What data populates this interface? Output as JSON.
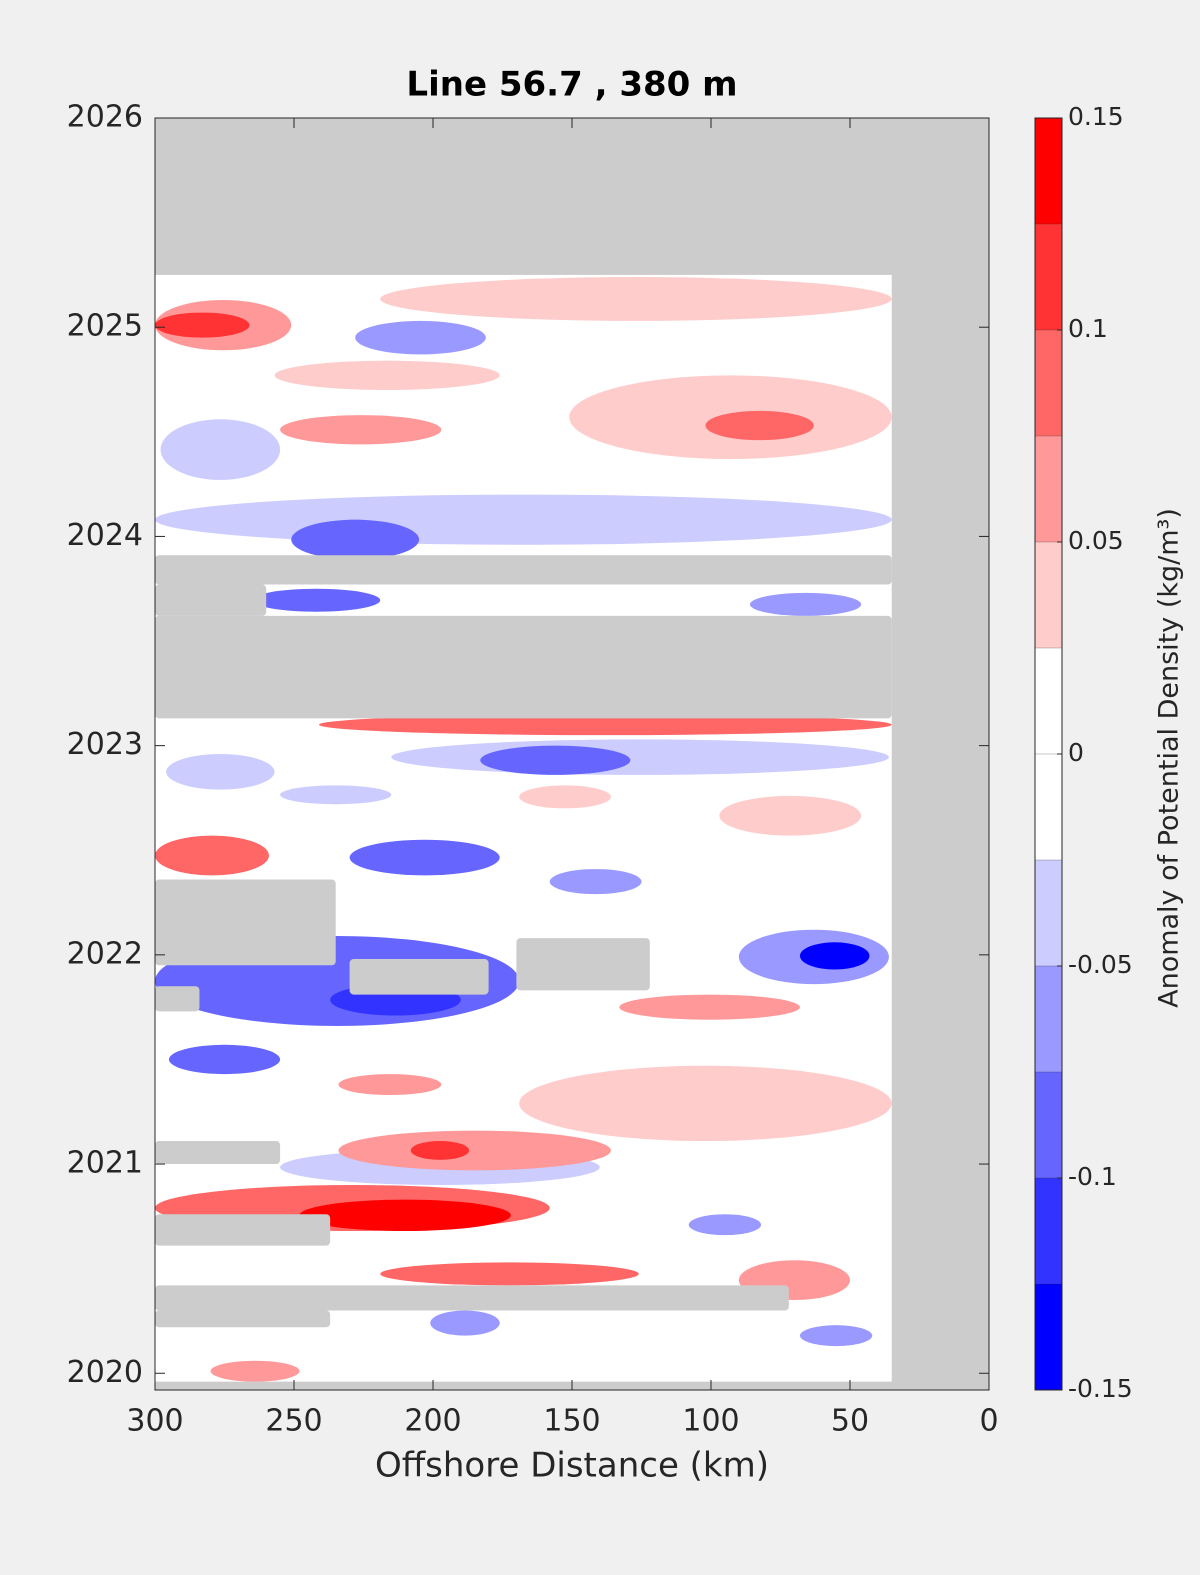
{
  "chart_data": {
    "type": "contour",
    "title": "Line 56.7 , 380 m",
    "xlabel": "Offshore Distance (km)",
    "colorbar_label": "Anomaly of Potential Density (kg/m³)",
    "xlim": [
      300,
      0
    ],
    "ylim": [
      2019.92,
      2026
    ],
    "xticks": [
      300,
      250,
      200,
      150,
      100,
      50,
      0
    ],
    "yticks": [
      2020,
      2021,
      2022,
      2023,
      2024,
      2025,
      2026
    ],
    "levels": [
      -0.15,
      -0.125,
      -0.1,
      -0.075,
      -0.05,
      -0.025,
      0,
      0.025,
      0.05,
      0.075,
      0.1,
      0.125,
      0.15
    ],
    "colors": [
      "#0000ff",
      "#3333ff",
      "#6666ff",
      "#9999ff",
      "#ccccff",
      "#ffffff",
      "#ffffff",
      "#ffcccc",
      "#ff9999",
      "#ff6666",
      "#ff3333",
      "#ff0000"
    ],
    "cticks": [
      -0.15,
      -0.1,
      -0.05,
      0,
      0.05,
      0.1,
      0.15
    ],
    "missing_color": "#cccccc",
    "data_extent": {
      "x0": 35,
      "x1": 300,
      "y0": 2019.96,
      "y1": 2025.25
    },
    "features": [
      {
        "x0": 35,
        "x1": 219,
        "y0": 2025.03,
        "y1": 2025.24,
        "value": 0.03
      },
      {
        "x0": 251,
        "x1": 300,
        "y0": 2024.89,
        "y1": 2025.13,
        "value": 0.06
      },
      {
        "x0": 266,
        "x1": 300,
        "y0": 2024.95,
        "y1": 2025.07,
        "value": 0.11
      },
      {
        "x0": 181,
        "x1": 228,
        "y0": 2024.87,
        "y1": 2025.03,
        "value": -0.06
      },
      {
        "x0": 176,
        "x1": 257,
        "y0": 2024.7,
        "y1": 2024.84,
        "value": 0.03
      },
      {
        "x0": 35,
        "x1": 151,
        "y0": 2024.37,
        "y1": 2024.77,
        "value": 0.03
      },
      {
        "x0": 197,
        "x1": 255,
        "y0": 2024.44,
        "y1": 2024.58,
        "value": 0.06
      },
      {
        "x0": 63,
        "x1": 102,
        "y0": 2024.46,
        "y1": 2024.6,
        "value": 0.08
      },
      {
        "x0": 255,
        "x1": 298,
        "y0": 2024.27,
        "y1": 2024.56,
        "value": -0.04
      },
      {
        "x0": 35,
        "x1": 300,
        "y0": 2023.96,
        "y1": 2024.2,
        "value": -0.04
      },
      {
        "x0": 205,
        "x1": 251,
        "y0": 2023.89,
        "y1": 2024.08,
        "value": -0.08
      },
      {
        "x0": 219,
        "x1": 265,
        "y0": 2023.64,
        "y1": 2023.75,
        "value": -0.09
      },
      {
        "x0": 46,
        "x1": 86,
        "y0": 2023.62,
        "y1": 2023.73,
        "value": -0.07
      },
      {
        "x0": 35,
        "x1": 241,
        "y0": 2023.05,
        "y1": 2023.15,
        "value": 0.08
      },
      {
        "x0": 36,
        "x1": 215,
        "y0": 2022.86,
        "y1": 2023.03,
        "value": -0.04
      },
      {
        "x0": 129,
        "x1": 183,
        "y0": 2022.86,
        "y1": 2023.0,
        "value": -0.09
      },
      {
        "x0": 257,
        "x1": 296,
        "y0": 2022.79,
        "y1": 2022.96,
        "value": -0.05
      },
      {
        "x0": 215,
        "x1": 255,
        "y0": 2022.72,
        "y1": 2022.81,
        "value": -0.05
      },
      {
        "x0": 136,
        "x1": 169,
        "y0": 2022.7,
        "y1": 2022.81,
        "value": 0.04
      },
      {
        "x0": 46,
        "x1": 97,
        "y0": 2022.57,
        "y1": 2022.76,
        "value": 0.04
      },
      {
        "x0": 259,
        "x1": 300,
        "y0": 2022.38,
        "y1": 2022.57,
        "value": 0.09
      },
      {
        "x0": 176,
        "x1": 230,
        "y0": 2022.38,
        "y1": 2022.55,
        "value": -0.08
      },
      {
        "x0": 125,
        "x1": 158,
        "y0": 2022.29,
        "y1": 2022.41,
        "value": -0.06
      },
      {
        "x0": 169,
        "x1": 300,
        "y0": 2021.66,
        "y1": 2022.09,
        "value": -0.08
      },
      {
        "x0": 190,
        "x1": 237,
        "y0": 2021.71,
        "y1": 2021.86,
        "value": -0.11
      },
      {
        "x0": 36,
        "x1": 90,
        "y0": 2021.86,
        "y1": 2022.12,
        "value": -0.07
      },
      {
        "x0": 43,
        "x1": 68,
        "y0": 2021.93,
        "y1": 2022.06,
        "value": -0.14
      },
      {
        "x0": 68,
        "x1": 133,
        "y0": 2021.69,
        "y1": 2021.81,
        "value": 0.05
      },
      {
        "x0": 255,
        "x1": 295,
        "y0": 2021.43,
        "y1": 2021.57,
        "value": -0.08
      },
      {
        "x0": 35,
        "x1": 169,
        "y0": 2021.11,
        "y1": 2021.47,
        "value": 0.03
      },
      {
        "x0": 197,
        "x1": 234,
        "y0": 2021.33,
        "y1": 2021.43,
        "value": 0.06
      },
      {
        "x0": 140,
        "x1": 255,
        "y0": 2020.9,
        "y1": 2021.07,
        "value": -0.04
      },
      {
        "x0": 136,
        "x1": 234,
        "y0": 2020.97,
        "y1": 2021.16,
        "value": 0.06
      },
      {
        "x0": 187,
        "x1": 208,
        "y0": 2021.02,
        "y1": 2021.11,
        "value": 0.1
      },
      {
        "x0": 158,
        "x1": 300,
        "y0": 2020.68,
        "y1": 2020.9,
        "value": 0.08
      },
      {
        "x0": 172,
        "x1": 248,
        "y0": 2020.68,
        "y1": 2020.83,
        "value": 0.13
      },
      {
        "x0": 82,
        "x1": 108,
        "y0": 2020.66,
        "y1": 2020.76,
        "value": -0.06
      },
      {
        "x0": 126,
        "x1": 219,
        "y0": 2020.42,
        "y1": 2020.53,
        "value": 0.09
      },
      {
        "x0": 50,
        "x1": 90,
        "y0": 2020.35,
        "y1": 2020.54,
        "value": 0.07
      },
      {
        "x0": 176,
        "x1": 201,
        "y0": 2020.18,
        "y1": 2020.3,
        "value": -0.07
      },
      {
        "x0": 42,
        "x1": 68,
        "y0": 2020.13,
        "y1": 2020.23,
        "value": -0.07
      },
      {
        "x0": 248,
        "x1": 280,
        "y0": 2019.96,
        "y1": 2020.06,
        "value": 0.05
      }
    ],
    "masks": [
      {
        "x0": 35,
        "x1": 300,
        "y0": 2023.77,
        "y1": 2023.91
      },
      {
        "x0": 260,
        "x1": 300,
        "y0": 2023.62,
        "y1": 2023.77
      },
      {
        "x0": 35,
        "x1": 300,
        "y0": 2023.13,
        "y1": 2023.62
      },
      {
        "x0": 235,
        "x1": 300,
        "y0": 2021.95,
        "y1": 2022.36
      },
      {
        "x0": 180,
        "x1": 230,
        "y0": 2021.81,
        "y1": 2021.98
      },
      {
        "x0": 122,
        "x1": 170,
        "y0": 2021.83,
        "y1": 2022.08
      },
      {
        "x0": 284,
        "x1": 300,
        "y0": 2021.73,
        "y1": 2021.85
      },
      {
        "x0": 255,
        "x1": 300,
        "y0": 2021.0,
        "y1": 2021.11
      },
      {
        "x0": 237,
        "x1": 300,
        "y0": 2020.61,
        "y1": 2020.76
      },
      {
        "x0": 72,
        "x1": 300,
        "y0": 2020.3,
        "y1": 2020.42
      },
      {
        "x0": 237,
        "x1": 300,
        "y0": 2020.22,
        "y1": 2020.3
      }
    ]
  }
}
